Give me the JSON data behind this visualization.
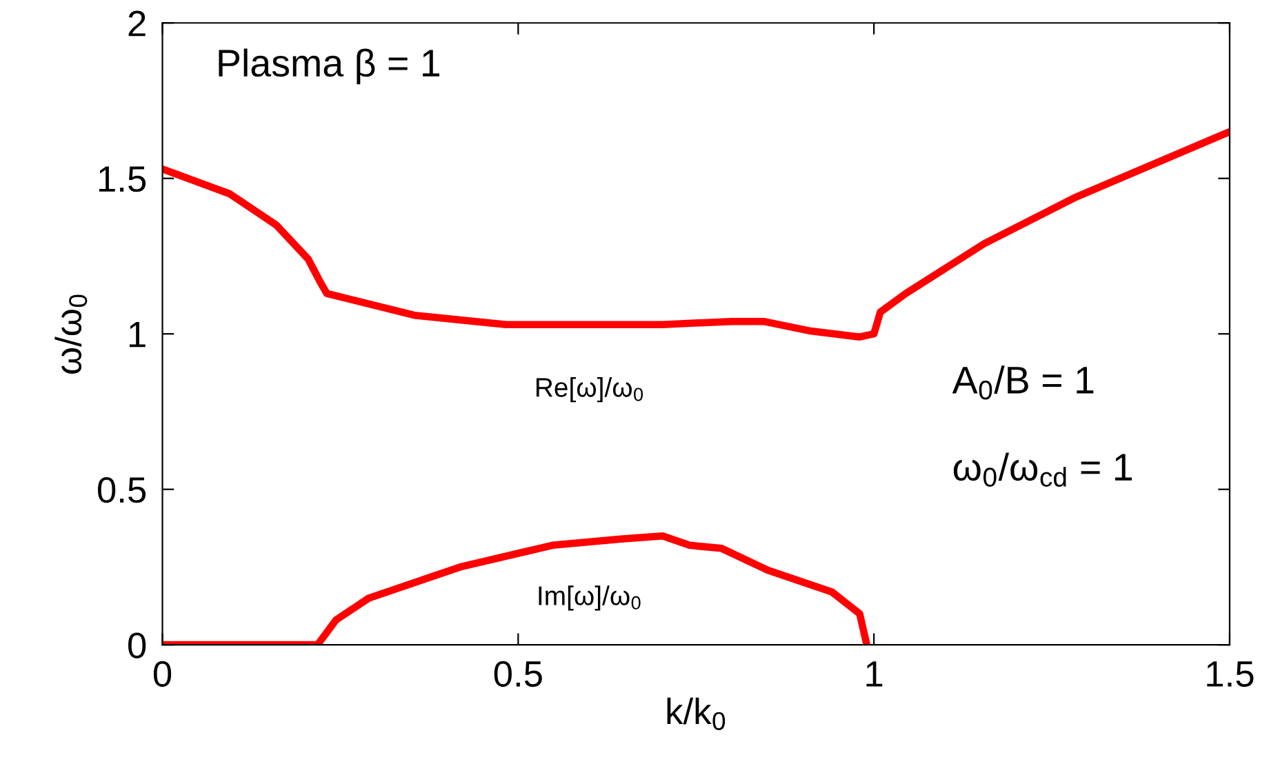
{
  "chart_data": {
    "type": "line",
    "xlabel": "k/k$_{0}$",
    "ylabel": "ω/ω$_{0}$",
    "xlim": [
      0,
      1.5
    ],
    "ylim": [
      0,
      2
    ],
    "xticks": [
      0,
      0.5,
      1,
      1.5
    ],
    "yticks": [
      0,
      0.5,
      1,
      1.5,
      2
    ],
    "grid": false,
    "legend": false,
    "series": [
      {
        "color": "#ff0000",
        "x": [
          0,
          0.095,
          0.16,
          0.205,
          0.221,
          0.231,
          0.354,
          0.483,
          0.612,
          0.703,
          0.8,
          0.845,
          0.909,
          0.98,
          1.0,
          1.009,
          1.045,
          1.155,
          1.284,
          1.5
        ],
        "values": [
          1.53,
          1.45,
          1.35,
          1.24,
          1.17,
          1.13,
          1.06,
          1.03,
          1.03,
          1.03,
          1.04,
          1.04,
          1.01,
          0.99,
          1.0,
          1.07,
          1.13,
          1.29,
          1.44,
          1.65
        ]
      },
      {
        "color": "#ff0000",
        "x": [
          0,
          0.218,
          0.244,
          0.29,
          0.418,
          0.548,
          0.644,
          0.703,
          0.741,
          0.786,
          0.851,
          0.941,
          0.98,
          0.99
        ],
        "values": [
          0,
          0,
          0.08,
          0.15,
          0.25,
          0.32,
          0.34,
          0.35,
          0.32,
          0.31,
          0.24,
          0.17,
          0.1,
          0
        ]
      }
    ],
    "annotations": [
      "Plasma β = 1",
      "Re[ω]/ω$_{0}$",
      "Im[ω]/ω$_{0}$",
      "A$_{0}$/B = 1",
      "ω$_{0}$/ω$_{cd}$ = 1"
    ]
  }
}
